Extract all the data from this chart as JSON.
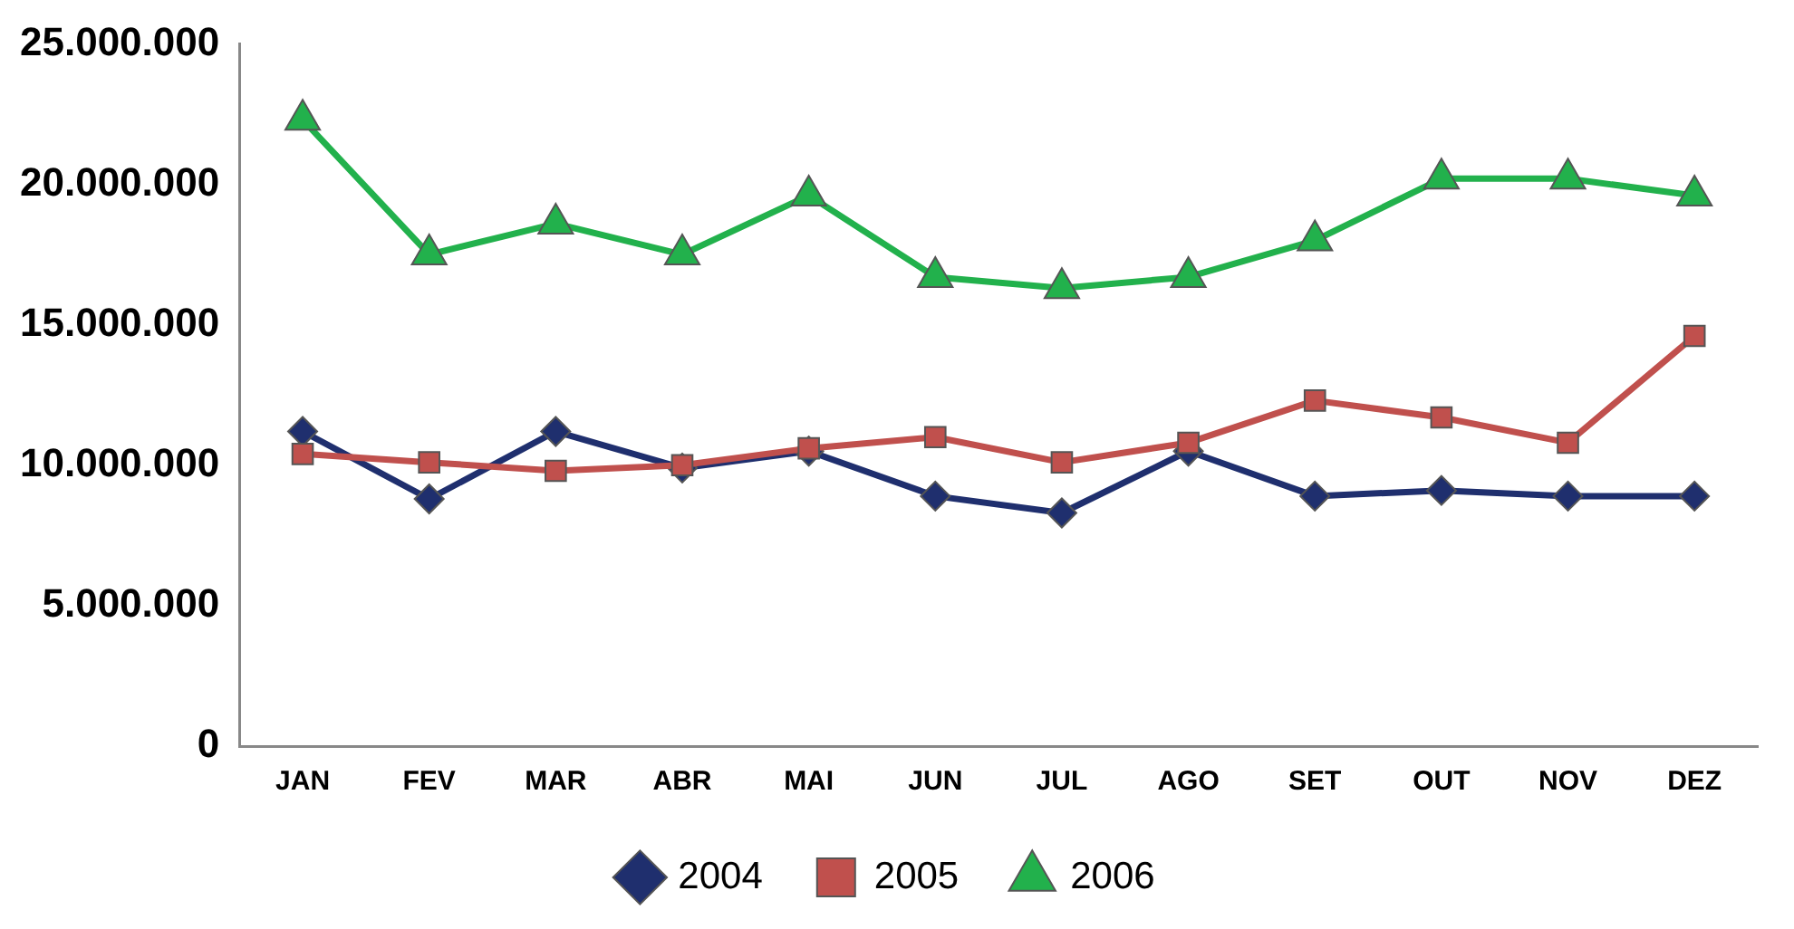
{
  "chart_data": {
    "type": "line",
    "categories": [
      "JAN",
      "FEV",
      "MAR",
      "ABR",
      "MAI",
      "JUN",
      "JUL",
      "AGO",
      "SET",
      "OUT",
      "NOV",
      "DEZ"
    ],
    "series": [
      {
        "name": "2004",
        "color": "#1f2f6e",
        "marker": "diamond",
        "values": [
          11200000,
          8800000,
          11200000,
          9900000,
          10500000,
          8900000,
          8300000,
          10500000,
          8900000,
          9100000,
          8900000,
          8900000
        ]
      },
      {
        "name": "2005",
        "color": "#c0504d",
        "marker": "square",
        "values": [
          10400000,
          10100000,
          9800000,
          10000000,
          10600000,
          11000000,
          10100000,
          10800000,
          12300000,
          11700000,
          10800000,
          14600000
        ]
      },
      {
        "name": "2006",
        "color": "#22b14c",
        "marker": "triangle",
        "values": [
          22300000,
          17500000,
          18600000,
          17500000,
          19600000,
          16700000,
          16300000,
          16700000,
          18000000,
          20200000,
          20200000,
          19600000
        ]
      }
    ],
    "ylim": [
      0,
      25000000
    ],
    "yticks": [
      0,
      {
        "value": 5000000,
        "label": "5.000.000"
      },
      {
        "value": 10000000,
        "label": "10.000.000"
      },
      {
        "value": 15000000,
        "label": "15.000.000"
      },
      {
        "value": 20000000,
        "label": "20.000.000"
      },
      {
        "value": 25000000,
        "label": "25.000.000"
      }
    ],
    "grid": false,
    "legend": "bottom",
    "line_style": "solid"
  }
}
